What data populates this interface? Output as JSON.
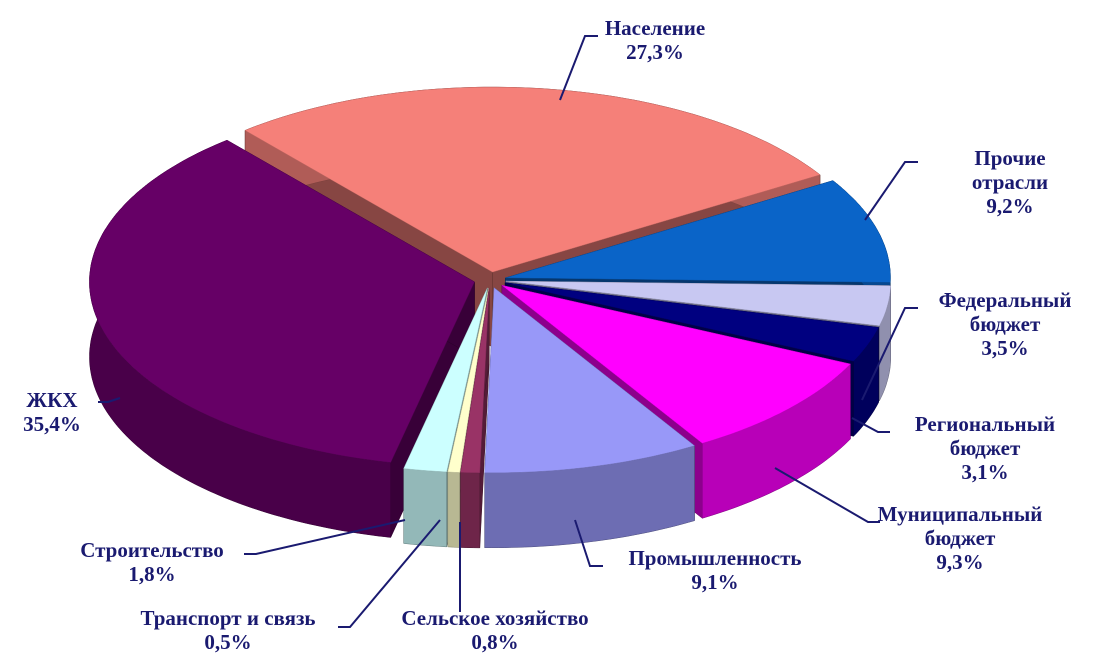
{
  "chart_data": {
    "type": "pie3d",
    "categories": [
      "Население",
      "Прочие отрасли",
      "Федеральный бюджет",
      "Региональный бюджет",
      "Муниципальный бюджет",
      "Промышленность",
      "Сельское хозяйство",
      "Транспорт и связь",
      "Строительство",
      "ЖКХ"
    ],
    "values": [
      27.3,
      9.2,
      3.5,
      3.1,
      9.3,
      9.1,
      0.8,
      0.5,
      1.8,
      35.4
    ],
    "value_labels": [
      "27,3%",
      "9,2%",
      "3,5%",
      "3,1%",
      "9,3%",
      "9,1%",
      "0,8%",
      "0,5%",
      "1,8%",
      "35,4%"
    ],
    "colors": [
      "#f58079",
      "#0a64c8",
      "#c8c8f2",
      "#000080",
      "#ff00ff",
      "#9898f8",
      "#993366",
      "#ffffcc",
      "#ccffff",
      "#660066"
    ]
  }
}
